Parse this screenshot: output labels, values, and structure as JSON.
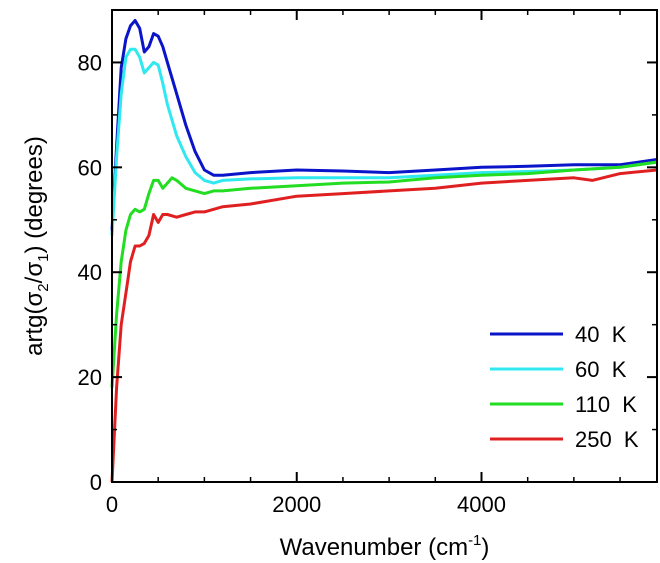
{
  "chart_data": {
    "type": "line",
    "xlabel": "Wavenumber (cm-1)",
    "ylabel": "artg(σ2/σ1) (degrees)",
    "xlim": [
      0,
      5900
    ],
    "ylim": [
      0,
      90
    ],
    "xticks": [
      0,
      2000,
      4000
    ],
    "yticks": [
      0,
      20,
      40,
      60,
      80
    ],
    "grid": false,
    "legend_position": "bottom-right",
    "series": [
      {
        "name": "40 K",
        "color": "#0a14c8",
        "x": [
          0,
          50,
          100,
          150,
          200,
          250,
          300,
          350,
          400,
          450,
          500,
          550,
          600,
          700,
          800,
          900,
          1000,
          1100,
          1200,
          1500,
          2000,
          2500,
          3000,
          3500,
          4000,
          4500,
          5000,
          5500,
          5900
        ],
        "y": [
          48,
          64,
          79,
          84.5,
          87,
          88,
          86.5,
          82,
          83,
          85.5,
          85,
          83,
          80,
          74,
          68,
          63,
          59.5,
          58.5,
          58.5,
          59,
          59.5,
          59.3,
          59,
          59.5,
          60,
          60.2,
          60.5,
          60.5,
          61.5
        ]
      },
      {
        "name": "60 K",
        "color": "#30e8f0",
        "x": [
          0,
          50,
          100,
          150,
          200,
          250,
          300,
          350,
          400,
          450,
          500,
          550,
          600,
          700,
          800,
          900,
          1000,
          1100,
          1200,
          1500,
          2000,
          2500,
          3000,
          3500,
          4000,
          4500,
          5000,
          5500,
          5900
        ],
        "y": [
          47,
          62,
          74,
          81,
          82.5,
          82.5,
          81,
          78,
          79,
          80,
          79.5,
          76,
          72,
          66,
          62,
          59,
          57.5,
          57,
          57.5,
          57.8,
          58,
          58,
          58,
          58.5,
          59,
          59.2,
          59.5,
          60,
          61
        ]
      },
      {
        "name": "110 K",
        "color": "#22dd22",
        "x": [
          0,
          50,
          100,
          150,
          200,
          250,
          300,
          350,
          400,
          450,
          500,
          550,
          600,
          650,
          700,
          800,
          900,
          1000,
          1100,
          1200,
          1500,
          2000,
          2500,
          3000,
          3500,
          4000,
          4500,
          5000,
          5500,
          5900
        ],
        "y": [
          18,
          32,
          42,
          48,
          51,
          52,
          51.5,
          52,
          55,
          57.5,
          57.5,
          56,
          57,
          58,
          57.5,
          56,
          55.5,
          55,
          55.5,
          55.5,
          56,
          56.5,
          57,
          57.2,
          58,
          58.5,
          58.8,
          59.5,
          60,
          61
        ]
      },
      {
        "name": "250 K",
        "color": "#e02020",
        "x": [
          0,
          50,
          100,
          150,
          200,
          250,
          300,
          350,
          400,
          450,
          500,
          550,
          600,
          700,
          800,
          900,
          1000,
          1100,
          1200,
          1500,
          2000,
          2500,
          3000,
          3500,
          4000,
          4500,
          5000,
          5200,
          5500,
          5900
        ],
        "y": [
          0,
          18,
          30,
          36,
          42,
          45,
          45,
          45.5,
          47,
          51,
          49.5,
          51,
          51,
          50.5,
          51,
          51.5,
          51.5,
          52,
          52.5,
          53,
          54.5,
          55,
          55.5,
          56,
          57,
          57.5,
          58,
          57.5,
          58.8,
          59.5
        ]
      }
    ]
  }
}
